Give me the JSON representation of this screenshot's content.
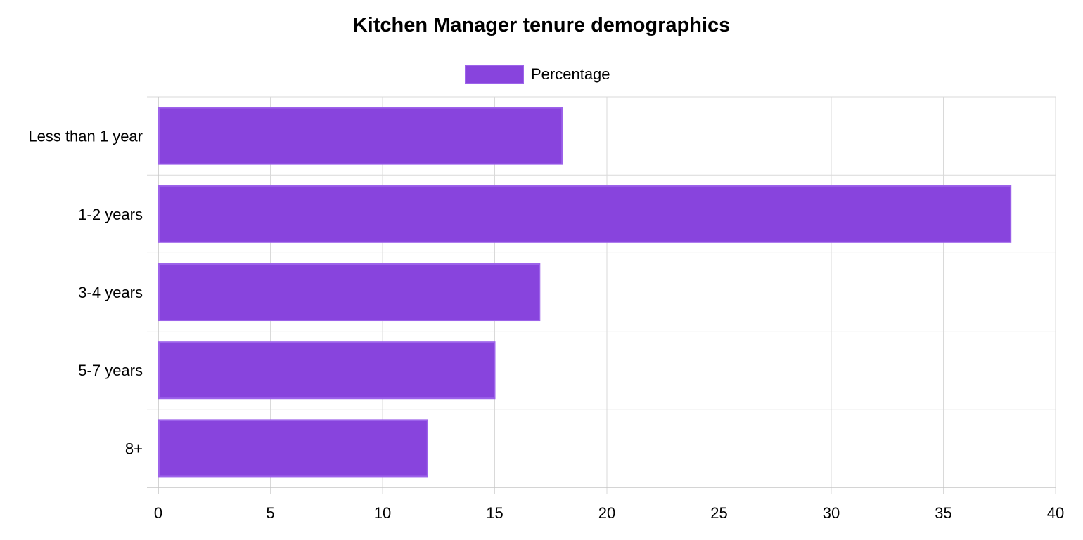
{
  "chart_data": {
    "type": "bar",
    "orientation": "horizontal",
    "title": "Kitchen Manager tenure demographics",
    "categories": [
      "Less than 1 year",
      "1-2 years",
      "3-4 years",
      "5-7 years",
      "8+"
    ],
    "series": [
      {
        "name": "Percentage",
        "values": [
          18,
          38,
          17,
          15,
          12
        ],
        "color": "#8844dd",
        "border_color": "#9d63ea"
      }
    ],
    "xlim": [
      0,
      40
    ],
    "x_ticks": [
      "0",
      "5",
      "10",
      "15",
      "20",
      "25",
      "30",
      "35",
      "40"
    ],
    "grid": true,
    "legend_position": "top-center"
  }
}
